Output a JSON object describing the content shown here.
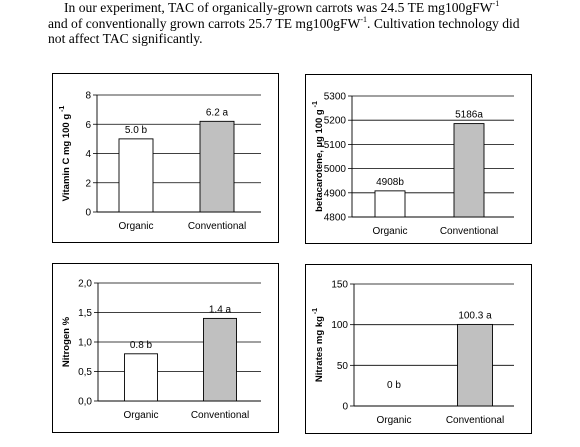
{
  "intro_text": {
    "line1_a": "In our experiment, TAC of organically-grown carrots was 24.5 TE mg100gFW",
    "line1_sup": "-1",
    "line2_a": "and of conventionally grown carrots 25.7 TE mg100gFW",
    "line2_sup": "-1",
    "line2_b": ". Cultivation technology did",
    "line3": "not affect TAC significantly."
  },
  "chart_data": [
    {
      "type": "bar",
      "title": "",
      "ylabel": "Vitamin C mg 100 g",
      "ylabel_sup": "-1",
      "categories": [
        "Organic",
        "Conventional"
      ],
      "values": [
        5.0,
        6.2
      ],
      "data_labels": [
        "5.0 b",
        "6.2 a"
      ],
      "ylim": [
        0,
        8
      ],
      "yticks": [
        0,
        2,
        4,
        6,
        8
      ],
      "ytick_labels": [
        "0",
        "2",
        "4",
        "6",
        "8"
      ],
      "bar_colors": [
        "#ffffff",
        "#c0c0c0"
      ],
      "grid": true,
      "legend": "none"
    },
    {
      "type": "bar",
      "title": "",
      "ylabel": "betacarotene, µg 100 g",
      "ylabel_sup": "-1",
      "categories": [
        "Organic",
        "Conventional"
      ],
      "values": [
        4908,
        5186
      ],
      "data_labels": [
        "4908b",
        "5186a"
      ],
      "ylim": [
        4800,
        5300
      ],
      "yticks": [
        4800,
        4900,
        5000,
        5100,
        5200,
        5300
      ],
      "ytick_labels": [
        "4800",
        "4900",
        "5000",
        "5100",
        "5200",
        "5300"
      ],
      "bar_colors": [
        "#ffffff",
        "#c0c0c0"
      ],
      "grid": true,
      "legend": "none"
    },
    {
      "type": "bar",
      "title": "",
      "ylabel": "Nitrogen %",
      "ylabel_sup": "",
      "categories": [
        "Organic",
        "Conventional"
      ],
      "values": [
        0.8,
        1.4
      ],
      "data_labels": [
        "0.8 b",
        "1.4 a"
      ],
      "ylim": [
        0,
        2
      ],
      "yticks": [
        0,
        0.5,
        1,
        1.5,
        2
      ],
      "ytick_labels": [
        "0,0",
        "0,5",
        "1,0",
        "1,5",
        "2,0"
      ],
      "bar_colors": [
        "#ffffff",
        "#c0c0c0"
      ],
      "grid": true,
      "legend": "none"
    },
    {
      "type": "bar",
      "title": "",
      "ylabel": "Nitrates mg kg",
      "ylabel_sup": "-1",
      "categories": [
        "Organic",
        "Conventional"
      ],
      "values": [
        0,
        100.3
      ],
      "data_labels": [
        "0 b",
        "100.3 a"
      ],
      "ylim": [
        0,
        150
      ],
      "yticks": [
        0,
        50,
        100,
        150
      ],
      "ytick_labels": [
        "0",
        "50",
        "100",
        "150"
      ],
      "bar_colors": [
        "#ffffff",
        "#c0c0c0"
      ],
      "grid": true,
      "legend": "none"
    }
  ]
}
